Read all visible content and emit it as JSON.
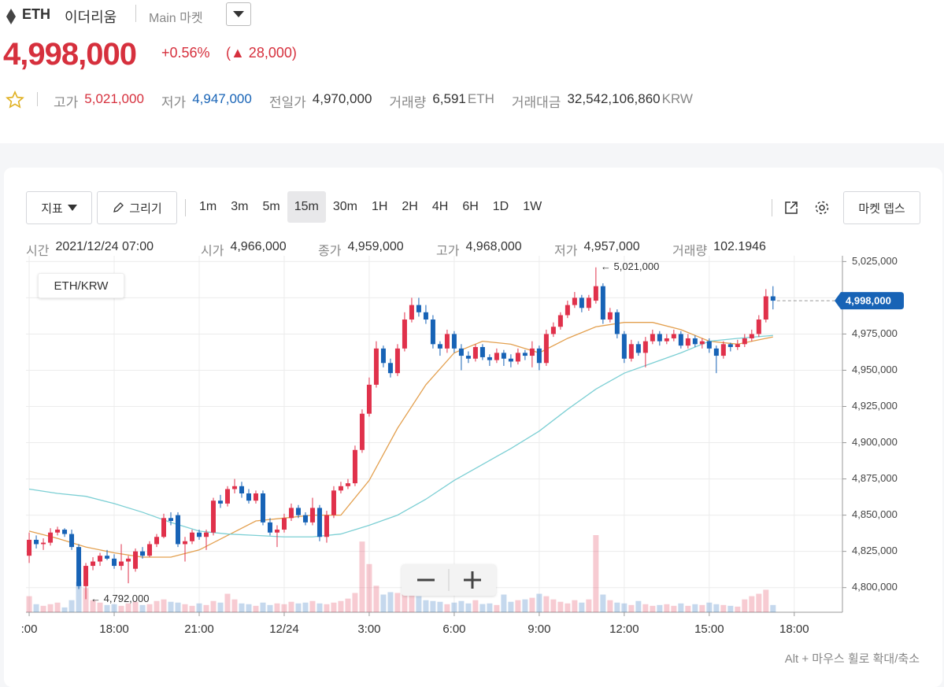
{
  "header": {
    "symbol": "ETH",
    "name": "이더리움",
    "market": "Main 마켓",
    "price": "4,998,000",
    "change_rate": "+0.56%",
    "change_amount": "(▲ 28,000)",
    "stats": [
      {
        "label": "고가",
        "value": "5,021,000"
      },
      {
        "label": "저가",
        "value": "4,947,000"
      },
      {
        "label": "전일가",
        "value": "4,970,000"
      },
      {
        "label": "거래량",
        "value": "6,591",
        "unit": "ETH"
      },
      {
        "label": "거래대금",
        "value": "32,542,106,860",
        "unit": "KRW"
      }
    ]
  },
  "toolbar": {
    "indicator_button": "지표",
    "draw_button": "그리기",
    "intervals": [
      "1m",
      "3m",
      "5m",
      "15m",
      "30m",
      "1H",
      "2H",
      "4H",
      "6H",
      "1D",
      "1W"
    ],
    "selected_interval": "15m",
    "depth_button": "마켓 뎁스"
  },
  "info_bar": [
    {
      "label": "시간",
      "value": "2021/12/24 07:00"
    },
    {
      "label": "시가",
      "value": "4,966,000"
    },
    {
      "label": "종가",
      "value": "4,959,000"
    },
    {
      "label": "고가",
      "value": "4,968,000"
    },
    {
      "label": "저가",
      "value": "4,957,000"
    },
    {
      "label": "거래량",
      "value": "102.1946"
    }
  ],
  "chart_data": {
    "type": "candlestick",
    "pair": "ETH/KRW",
    "up_color": "#e0314b",
    "down_color": "#1763b6",
    "grid": true,
    "xlim": [
      -0.45,
      114.8
    ],
    "xticks": [
      {
        "value": 0,
        "label": ":00"
      },
      {
        "value": 12,
        "label": "18:00"
      },
      {
        "value": 24,
        "label": "21:00"
      },
      {
        "value": 36,
        "label": "12/24"
      },
      {
        "value": 48,
        "label": "3:00"
      },
      {
        "value": 60,
        "label": "6:00"
      },
      {
        "value": 72,
        "label": "9:00"
      },
      {
        "value": 84,
        "label": "12:00"
      },
      {
        "value": 96,
        "label": "15:00"
      },
      {
        "value": 108,
        "label": "18:00"
      }
    ],
    "ylim": [
      4783000,
      5029000
    ],
    "yticks": [
      {
        "value": 4800000,
        "label": "4,800,000"
      },
      {
        "value": 4825000,
        "label": "4,825,000"
      },
      {
        "value": 4850000,
        "label": "4,850,000"
      },
      {
        "value": 4875000,
        "label": "4,875,000"
      },
      {
        "value": 4900000,
        "label": "4,900,000"
      },
      {
        "value": 4925000,
        "label": "4,925,000"
      },
      {
        "value": 4950000,
        "label": "4,950,000"
      },
      {
        "value": 4975000,
        "label": "4,975,000"
      },
      {
        "value": 5000000,
        "label": "5,000,000"
      },
      {
        "value": 5025000,
        "label": "5,025,000"
      }
    ],
    "ohlc": [
      [
        4822000,
        4838000,
        4817000,
        4833000
      ],
      [
        4833000,
        4836000,
        4827000,
        4830000
      ],
      [
        4830000,
        4834000,
        4826000,
        4831000
      ],
      [
        4831000,
        4841000,
        4829000,
        4838000
      ],
      [
        4838000,
        4842000,
        4836000,
        4840000
      ],
      [
        4840000,
        4841000,
        4835000,
        4837000
      ],
      [
        4837000,
        4840000,
        4826000,
        4828000
      ],
      [
        4828000,
        4830000,
        4799000,
        4801000
      ],
      [
        4801000,
        4817000,
        4792000,
        4815000
      ],
      [
        4815000,
        4821000,
        4812000,
        4818000
      ],
      [
        4818000,
        4824000,
        4815000,
        4822000
      ],
      [
        4822000,
        4826000,
        4819000,
        4820000
      ],
      [
        4820000,
        4823000,
        4813000,
        4815000
      ],
      [
        4815000,
        4830000,
        4812000,
        4818000
      ],
      [
        4818000,
        4822000,
        4803000,
        4820000
      ],
      [
        4813000,
        4827000,
        4811000,
        4825000
      ],
      [
        4825000,
        4828000,
        4820000,
        4822000
      ],
      [
        4822000,
        4832000,
        4821000,
        4830000
      ],
      [
        4830000,
        4837000,
        4828000,
        4835000
      ],
      [
        4835000,
        4851000,
        4834000,
        4848000
      ],
      [
        4848000,
        4852000,
        4843000,
        4846000
      ],
      [
        4850000,
        4852000,
        4828000,
        4830000
      ],
      [
        4830000,
        4835000,
        4818000,
        4832000
      ],
      [
        4832000,
        4840000,
        4830000,
        4838000
      ],
      [
        4838000,
        4840000,
        4833000,
        4835000
      ],
      [
        4835000,
        4840000,
        4826000,
        4838000
      ],
      [
        4838000,
        4862000,
        4836000,
        4860000
      ],
      [
        4860000,
        4864000,
        4855000,
        4858000
      ],
      [
        4858000,
        4870000,
        4856000,
        4868000
      ],
      [
        4868000,
        4875000,
        4865000,
        4870000
      ],
      [
        4870000,
        4873000,
        4862000,
        4865000
      ],
      [
        4865000,
        4868000,
        4858000,
        4860000
      ],
      [
        4860000,
        4867000,
        4858000,
        4865000
      ],
      [
        4865000,
        4867000,
        4843000,
        4845000
      ],
      [
        4845000,
        4848000,
        4836000,
        4838000
      ],
      [
        4838000,
        4843000,
        4828000,
        4840000
      ],
      [
        4840000,
        4851000,
        4838000,
        4848000
      ],
      [
        4848000,
        4858000,
        4846000,
        4855000
      ],
      [
        4855000,
        4857000,
        4848000,
        4850000
      ],
      [
        4850000,
        4852000,
        4843000,
        4845000
      ],
      [
        4845000,
        4862000,
        4843000,
        4855000
      ],
      [
        4855000,
        4857000,
        4832000,
        4835000
      ],
      [
        4835000,
        4853000,
        4831000,
        4850000
      ],
      [
        4850000,
        4870000,
        4848000,
        4867000
      ],
      [
        4867000,
        4873000,
        4865000,
        4870000
      ],
      [
        4870000,
        4875000,
        4868000,
        4872000
      ],
      [
        4872000,
        4898000,
        4870000,
        4895000
      ],
      [
        4895000,
        4923000,
        4893000,
        4920000
      ],
      [
        4920000,
        4945000,
        4918000,
        4940000
      ],
      [
        4940000,
        4970000,
        4938000,
        4965000
      ],
      [
        4965000,
        4967000,
        4952000,
        4955000
      ],
      [
        4955000,
        4958000,
        4945000,
        4948000
      ],
      [
        4948000,
        4968000,
        4946000,
        4965000
      ],
      [
        4965000,
        4990000,
        4963000,
        4985000
      ],
      [
        4985000,
        5000000,
        4983000,
        4995000
      ],
      [
        4995000,
        5000000,
        4987000,
        4990000
      ],
      [
        4990000,
        4995000,
        4982000,
        4985000
      ],
      [
        4985000,
        4988000,
        4965000,
        4968000
      ],
      [
        4968000,
        4970000,
        4960000,
        4965000
      ],
      [
        4965000,
        4978000,
        4962000,
        4975000
      ],
      [
        4975000,
        4977000,
        4962000,
        4965000
      ],
      [
        4965000,
        4968000,
        4950000,
        4960000
      ],
      [
        4960000,
        4963000,
        4955000,
        4958000
      ],
      [
        4958000,
        4968000,
        4956000,
        4966000
      ],
      [
        4966000,
        4968000,
        4957000,
        4959000
      ],
      [
        4959000,
        4961000,
        4953000,
        4957000
      ],
      [
        4957000,
        4965000,
        4955000,
        4962000
      ],
      [
        4962000,
        4964000,
        4953000,
        4958000
      ],
      [
        4958000,
        4961000,
        4952000,
        4956000
      ],
      [
        4956000,
        4965000,
        4954000,
        4962000
      ],
      [
        4962000,
        4964000,
        4957000,
        4960000
      ],
      [
        4960000,
        4970000,
        4952000,
        4965000
      ],
      [
        4965000,
        4967000,
        4950000,
        4955000
      ],
      [
        4955000,
        4978000,
        4953000,
        4975000
      ],
      [
        4975000,
        4983000,
        4973000,
        4980000
      ],
      [
        4980000,
        4990000,
        4978000,
        4988000
      ],
      [
        4988000,
        4998000,
        4986000,
        4995000
      ],
      [
        4995000,
        5004000,
        4993000,
        5000000
      ],
      [
        5000000,
        5002000,
        4990000,
        4993000
      ],
      [
        4993000,
        5002000,
        4991000,
        5000000
      ],
      [
        4998000,
        5021000,
        4996000,
        5008000
      ],
      [
        5008000,
        5010000,
        4982000,
        4985000
      ],
      [
        4985000,
        4993000,
        4983000,
        4990000
      ],
      [
        4990000,
        4992000,
        4972000,
        4975000
      ],
      [
        4975000,
        4977000,
        4955000,
        4958000
      ],
      [
        4958000,
        4971000,
        4956000,
        4968000
      ],
      [
        4968000,
        4970000,
        4960000,
        4962000
      ],
      [
        4962000,
        4973000,
        4952000,
        4970000
      ],
      [
        4970000,
        4978000,
        4968000,
        4975000
      ],
      [
        4975000,
        4977000,
        4967000,
        4970000
      ],
      [
        4970000,
        4975000,
        4968000,
        4972000
      ],
      [
        4972000,
        4978000,
        4970000,
        4975000
      ],
      [
        4975000,
        4977000,
        4965000,
        4967000
      ],
      [
        4967000,
        4975000,
        4965000,
        4972000
      ],
      [
        4972000,
        4974000,
        4966000,
        4968000
      ],
      [
        4968000,
        4972000,
        4965000,
        4970000
      ],
      [
        4970000,
        4972000,
        4962000,
        4965000
      ],
      [
        4965000,
        4967000,
        4948000,
        4960000
      ],
      [
        4960000,
        4970000,
        4958000,
        4968000
      ],
      [
        4968000,
        4969000,
        4963000,
        4966000
      ],
      [
        4966000,
        4971000,
        4964000,
        4968000
      ],
      [
        4968000,
        4975000,
        4966000,
        4972000
      ],
      [
        4972000,
        4978000,
        4970000,
        4975000
      ],
      [
        4975000,
        4988000,
        4973000,
        4985000
      ],
      [
        4985000,
        5006000,
        4983000,
        5001000
      ],
      [
        5001000,
        5008000,
        4992000,
        4998000
      ]
    ],
    "volume": [
      200,
      100,
      80,
      100,
      120,
      60,
      150,
      380,
      300,
      150,
      120,
      90,
      100,
      80,
      110,
      130,
      90,
      100,
      140,
      160,
      130,
      120,
      100,
      80,
      110,
      90,
      140,
      120,
      230,
      160,
      110,
      100,
      80,
      120,
      90,
      110,
      100,
      130,
      110,
      120,
      140,
      110,
      100,
      120,
      140,
      170,
      240,
      880,
      600,
      330,
      220,
      250,
      240,
      300,
      270,
      200,
      150,
      140,
      130,
      100,
      120,
      140,
      110,
      150,
      102.1946,
      110,
      90,
      220,
      130,
      150,
      160,
      180,
      230,
      200,
      160,
      130,
      110,
      150,
      120,
      160,
      960,
      220,
      150,
      120,
      110,
      90,
      140,
      100,
      80,
      90,
      100,
      80,
      110,
      80,
      100,
      90,
      120,
      100,
      90,
      80,
      70,
      160,
      200,
      230,
      280,
      90
    ],
    "moving_averages": [
      {
        "color": "#e3a04f",
        "x": [
          0,
          4,
          8,
          12,
          16,
          20,
          24,
          28,
          32,
          36,
          40,
          44,
          48,
          52,
          56,
          60,
          64,
          68,
          72,
          76,
          80,
          84,
          88,
          92,
          96,
          100,
          105
        ],
        "values": [
          4839000,
          4834000,
          4828000,
          4824000,
          4821000,
          4821000,
          4826000,
          4836000,
          4846000,
          4848000,
          4850000,
          4850000,
          4874000,
          4910000,
          4940000,
          4962000,
          4970000,
          4968000,
          4962000,
          4972000,
          4980000,
          4983000,
          4983000,
          4978000,
          4970000,
          4968000,
          4973000
        ]
      },
      {
        "color": "#7ccfd4",
        "x": [
          0,
          4,
          8,
          12,
          16,
          20,
          24,
          28,
          32,
          36,
          40,
          44,
          48,
          52,
          56,
          60,
          64,
          68,
          72,
          76,
          80,
          84,
          88,
          92,
          96,
          100,
          105
        ],
        "values": [
          4868000,
          4865000,
          4863000,
          4858000,
          4852000,
          4845000,
          4839000,
          4837000,
          4836000,
          4835000,
          4835000,
          4837000,
          4843000,
          4850000,
          4861000,
          4874000,
          4885000,
          4896000,
          4908000,
          4923000,
          4937000,
          4948000,
          4955000,
          4962000,
          4970000,
          4972000,
          4974000
        ]
      }
    ],
    "annotations": [
      {
        "value": 5021000,
        "label": "← 5,021,000"
      },
      {
        "value": 4792000,
        "label": "← 4,792,000"
      }
    ],
    "last_price": {
      "value": 4998000,
      "label": "4,998,000"
    }
  },
  "footer_hint": "Alt + 마우스 휠로 확대/축소"
}
